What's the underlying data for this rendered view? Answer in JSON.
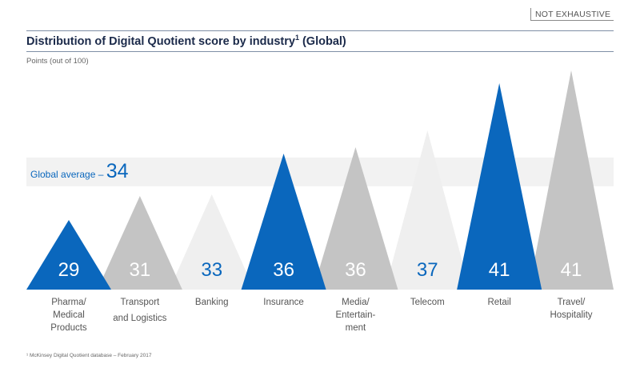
{
  "header": {
    "badge": "NOT EXHAUSTIVE",
    "title": "Distribution of Digital Quotient score by industry",
    "title_sup": "1",
    "title_suffix": " (Global)",
    "unit": "Points (out of 100)"
  },
  "footnote": "¹ McKinsey Digital Quotient database – February 2017",
  "colors": {
    "blue": "#0a67bd",
    "gray": "#c4c4c4",
    "light": "#efefef",
    "band": "#f2f2f2"
  },
  "chart_data": {
    "type": "bar",
    "title": "Distribution of Digital Quotient score by industry (Global)",
    "ylabel": "Points (out of 100)",
    "ylim": [
      0,
      100
    ],
    "average": {
      "label": "Global average – ",
      "value": 34
    },
    "categories": [
      "Pharma/ Medical Products",
      "Transport and Logistics",
      "Banking",
      "Insurance",
      "Media/ Entertainment",
      "Telecom",
      "Retail",
      "Travel/ Hospitality"
    ],
    "values": [
      29,
      31,
      33,
      36,
      36,
      37,
      41,
      41
    ],
    "value_labels": [
      "29",
      "31",
      "33",
      "36",
      "36",
      "37",
      "41",
      "41"
    ],
    "category_lines": [
      [
        "Pharma/",
        "Medical",
        "Products"
      ],
      [
        "Transport",
        "and Logistics"
      ],
      [
        "Banking"
      ],
      [
        "Insurance"
      ],
      [
        "Media/",
        "Entertain-",
        "ment"
      ],
      [
        "Telecom"
      ],
      [
        "Retail"
      ],
      [
        "Travel/",
        "Hospitality"
      ]
    ],
    "fills": [
      "blue",
      "gray",
      "light",
      "blue",
      "gray",
      "light",
      "blue",
      "gray"
    ]
  }
}
